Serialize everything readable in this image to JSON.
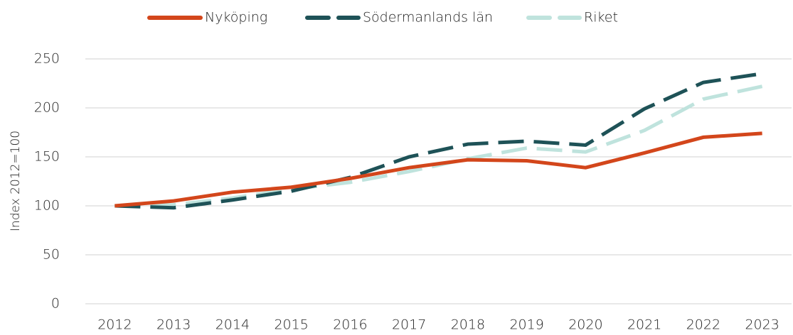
{
  "chart_data": {
    "type": "line",
    "y_label": "Index 2012=100",
    "categories": [
      "2012",
      "2013",
      "2014",
      "2015",
      "2016",
      "2017",
      "2018",
      "2019",
      "2020",
      "2021",
      "2022",
      "2023"
    ],
    "series": [
      {
        "name": "Nyköping",
        "color": "#d3461b",
        "dash": "solid",
        "values": [
          100,
          105,
          114,
          119,
          128,
          139,
          147,
          146,
          139,
          154,
          170,
          174
        ]
      },
      {
        "name": "Södermanlands län",
        "color": "#1e5257",
        "dash": "dashed",
        "values": [
          100,
          98,
          106,
          115,
          129,
          150,
          163,
          166,
          162,
          199,
          226,
          235
        ]
      },
      {
        "name": "Riket",
        "color": "#bfe3dd",
        "dash": "dashed",
        "values": [
          100,
          101,
          108,
          117,
          124,
          135,
          148,
          159,
          155,
          177,
          209,
          222
        ]
      }
    ],
    "ylim": [
      0,
      250
    ],
    "yticks": [
      0,
      50,
      100,
      150,
      200,
      250
    ],
    "grid": true,
    "legend": "top"
  }
}
